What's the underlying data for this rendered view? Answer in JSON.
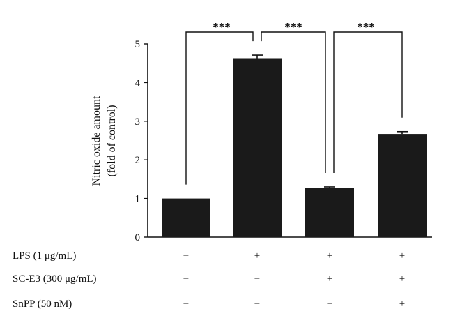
{
  "chart_data": {
    "type": "bar",
    "ylabel": [
      "Nitric oxide amount",
      "(fold of control)"
    ],
    "ylim": [
      0,
      5
    ],
    "yticks": [
      0,
      1,
      2,
      3,
      4,
      5
    ],
    "grid": false,
    "bar_color": "#1a1a1a",
    "values": [
      1.0,
      4.63,
      1.27,
      2.67
    ],
    "errors": [
      0.0,
      0.08,
      0.03,
      0.06
    ],
    "conditions": [
      {
        "label": "LPS (1 μg/mL)",
        "marks": [
          "−",
          "+",
          "+",
          "+"
        ]
      },
      {
        "label": "SC-E3 (300 μg/mL)",
        "marks": [
          "−",
          "−",
          "+",
          "+"
        ]
      },
      {
        "label": "SnPP (50 nM)",
        "marks": [
          "−",
          "−",
          "−",
          "+"
        ]
      }
    ],
    "significance": [
      {
        "from": 0,
        "to": 1,
        "label": "***"
      },
      {
        "from": 1,
        "to": 2,
        "label": "***"
      },
      {
        "from": 2,
        "to": 3,
        "label": "***"
      }
    ]
  }
}
